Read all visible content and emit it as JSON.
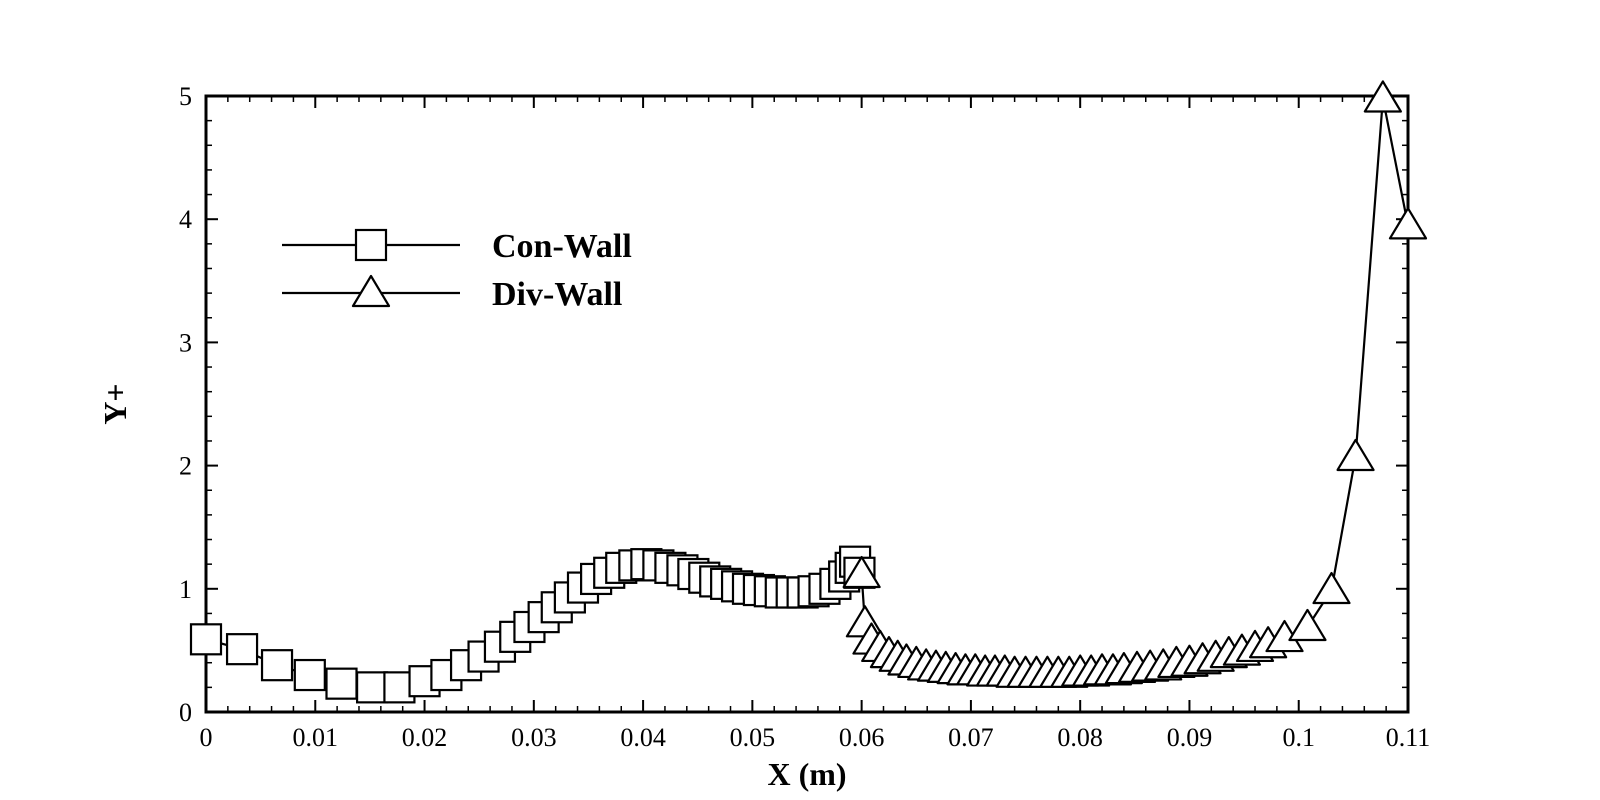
{
  "chart_data": {
    "type": "line",
    "title": "",
    "xlabel": "X (m)",
    "ylabel": "Y+",
    "xlim": [
      0,
      0.11
    ],
    "ylim": [
      0,
      5
    ],
    "x_ticks": [
      "0",
      "0.01",
      "0.02",
      "0.03",
      "0.04",
      "0.05",
      "0.06",
      "0.07",
      "0.08",
      "0.09",
      "0.1",
      "0.11"
    ],
    "x_tick_values": [
      0,
      0.01,
      0.02,
      0.03,
      0.04,
      0.05,
      0.06,
      0.07,
      0.08,
      0.09,
      0.1,
      0.11
    ],
    "y_ticks": [
      "0",
      "1",
      "2",
      "3",
      "4",
      "5"
    ],
    "y_tick_values": [
      0,
      1,
      2,
      3,
      4,
      5
    ],
    "grid": false,
    "legend_position": "top-left",
    "series": [
      {
        "name": "Con-Wall",
        "marker": "square",
        "points": [
          [
            0.0,
            0.59
          ],
          [
            0.0033,
            0.51
          ],
          [
            0.0065,
            0.38
          ],
          [
            0.0095,
            0.3
          ],
          [
            0.0124,
            0.23
          ],
          [
            0.0152,
            0.2
          ],
          [
            0.0177,
            0.2
          ],
          [
            0.02,
            0.25
          ],
          [
            0.022,
            0.3
          ],
          [
            0.0238,
            0.38
          ],
          [
            0.0254,
            0.45
          ],
          [
            0.0269,
            0.53
          ],
          [
            0.0283,
            0.61
          ],
          [
            0.0296,
            0.69
          ],
          [
            0.0309,
            0.77
          ],
          [
            0.0321,
            0.85
          ],
          [
            0.0333,
            0.93
          ],
          [
            0.0345,
            1.01
          ],
          [
            0.0357,
            1.08
          ],
          [
            0.0369,
            1.13
          ],
          [
            0.038,
            1.17
          ],
          [
            0.0392,
            1.19
          ],
          [
            0.0403,
            1.2
          ],
          [
            0.0414,
            1.19
          ],
          [
            0.0425,
            1.17
          ],
          [
            0.0436,
            1.15
          ],
          [
            0.0446,
            1.12
          ],
          [
            0.0456,
            1.09
          ],
          [
            0.0466,
            1.06
          ],
          [
            0.0476,
            1.04
          ],
          [
            0.0486,
            1.02
          ],
          [
            0.0496,
            1.0
          ],
          [
            0.0506,
            0.99
          ],
          [
            0.0516,
            0.98
          ],
          [
            0.0526,
            0.97
          ],
          [
            0.0536,
            0.97
          ],
          [
            0.0546,
            0.97
          ],
          [
            0.0556,
            0.98
          ],
          [
            0.0566,
            1.0
          ],
          [
            0.0576,
            1.04
          ],
          [
            0.0584,
            1.1
          ],
          [
            0.059,
            1.17
          ],
          [
            0.0594,
            1.22
          ],
          [
            0.0598,
            1.13
          ]
        ]
      },
      {
        "name": "Div-Wall",
        "marker": "triangle",
        "points": [
          [
            0.06,
            1.12
          ],
          [
            0.0603,
            0.72
          ],
          [
            0.0609,
            0.58
          ],
          [
            0.0617,
            0.52
          ],
          [
            0.0625,
            0.47
          ],
          [
            0.0633,
            0.44
          ],
          [
            0.0641,
            0.41
          ],
          [
            0.065,
            0.39
          ],
          [
            0.0659,
            0.37
          ],
          [
            0.0668,
            0.36
          ],
          [
            0.0677,
            0.35
          ],
          [
            0.0686,
            0.34
          ],
          [
            0.0695,
            0.33
          ],
          [
            0.0704,
            0.33
          ],
          [
            0.0713,
            0.32
          ],
          [
            0.0722,
            0.32
          ],
          [
            0.0731,
            0.32
          ],
          [
            0.074,
            0.31
          ],
          [
            0.075,
            0.31
          ],
          [
            0.076,
            0.31
          ],
          [
            0.077,
            0.31
          ],
          [
            0.078,
            0.31
          ],
          [
            0.079,
            0.31
          ],
          [
            0.08,
            0.32
          ],
          [
            0.081,
            0.32
          ],
          [
            0.082,
            0.33
          ],
          [
            0.083,
            0.33
          ],
          [
            0.084,
            0.34
          ],
          [
            0.0852,
            0.35
          ],
          [
            0.0864,
            0.36
          ],
          [
            0.0876,
            0.37
          ],
          [
            0.0888,
            0.39
          ],
          [
            0.09,
            0.4
          ],
          [
            0.0912,
            0.42
          ],
          [
            0.0924,
            0.44
          ],
          [
            0.0936,
            0.47
          ],
          [
            0.0948,
            0.49
          ],
          [
            0.096,
            0.52
          ],
          [
            0.0972,
            0.55
          ],
          [
            0.0987,
            0.6
          ],
          [
            0.1008,
            0.69
          ],
          [
            0.103,
            0.99
          ],
          [
            0.1052,
            2.07
          ],
          [
            0.1077,
            4.98
          ],
          [
            0.11,
            3.95
          ]
        ]
      }
    ]
  }
}
